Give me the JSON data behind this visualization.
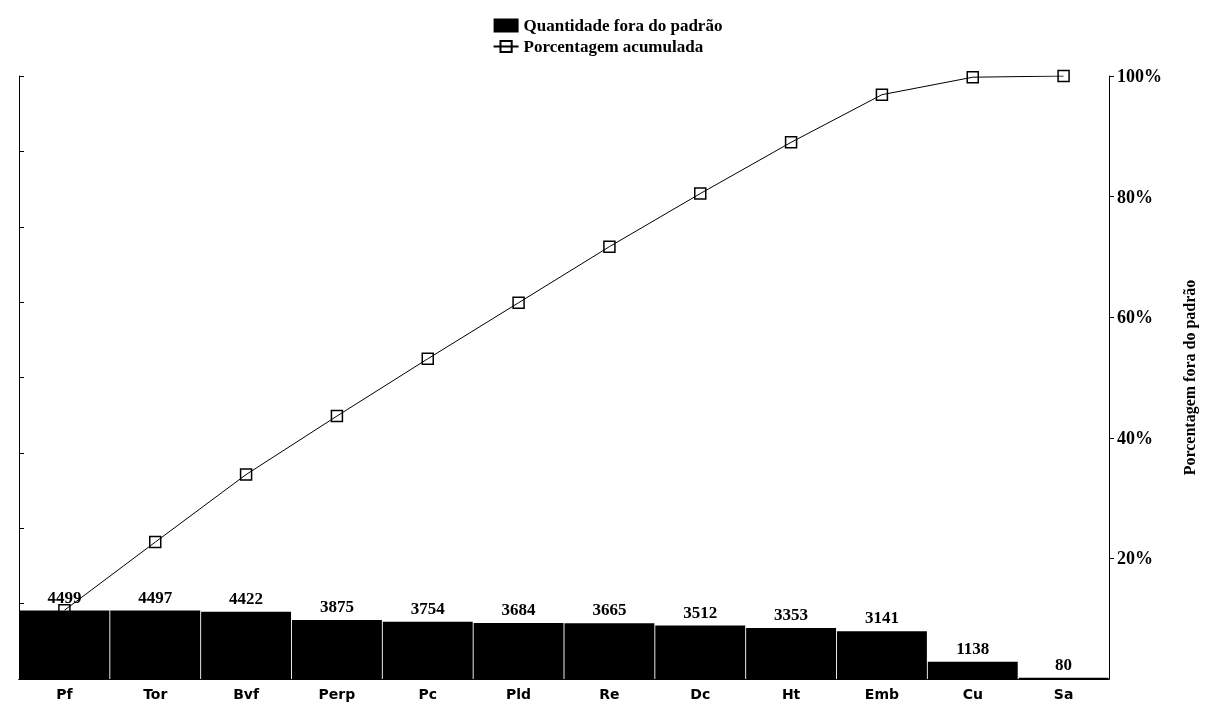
{
  "chart_data": {
    "type": "bar",
    "categories": [
      "Pf",
      "Tor",
      "Bvf",
      "Perp",
      "Pc",
      "Pld",
      "Re",
      "Dc",
      "Ht",
      "Emb",
      "Cu",
      "Sa"
    ],
    "series": [
      {
        "name": "Quantidade fora do padrão",
        "color": "#000000",
        "values": [
          4499,
          4497,
          4422,
          3875,
          3754,
          3684,
          3665,
          3512,
          3353,
          3141,
          1138,
          80
        ],
        "value_labels": [
          "4499",
          "4497",
          "4422",
          "3875",
          "3754",
          "3684",
          "3665",
          "3512",
          "3353",
          "3141",
          "1138",
          "80"
        ]
      },
      {
        "name": "Porcentagem acumulada",
        "type": "line",
        "axis": "y2",
        "color": "#000000",
        "values": [
          11.4,
          22.7,
          33.9,
          43.6,
          53.1,
          62.4,
          71.7,
          80.5,
          89.0,
          96.9,
          99.8,
          100
        ]
      }
    ],
    "ylim": [
      0,
      39620
    ],
    "yticks": [
      {
        "value": 0,
        "label": null
      },
      {
        "value": 4952.5,
        "label": null
      },
      {
        "value": 9905,
        "label": null
      },
      {
        "value": 14857.5,
        "label": null
      },
      {
        "value": 19810,
        "label": null
      },
      {
        "value": 24762.5,
        "label": null
      },
      {
        "value": 29715,
        "label": null
      },
      {
        "value": 34667.5,
        "label": null
      },
      {
        "value": 39620,
        "label": null
      }
    ],
    "y2label": "Porcentagem fora do padrão",
    "y2lim": [
      0,
      100
    ],
    "y2ticks": [
      {
        "value": 20,
        "label": "20%"
      },
      {
        "value": 40,
        "label": "40%"
      },
      {
        "value": 60,
        "label": "60%"
      },
      {
        "value": 80,
        "label": "80%"
      },
      {
        "value": 100,
        "label": "100%"
      }
    ],
    "marker": "square",
    "grid": false,
    "legend": "top"
  }
}
